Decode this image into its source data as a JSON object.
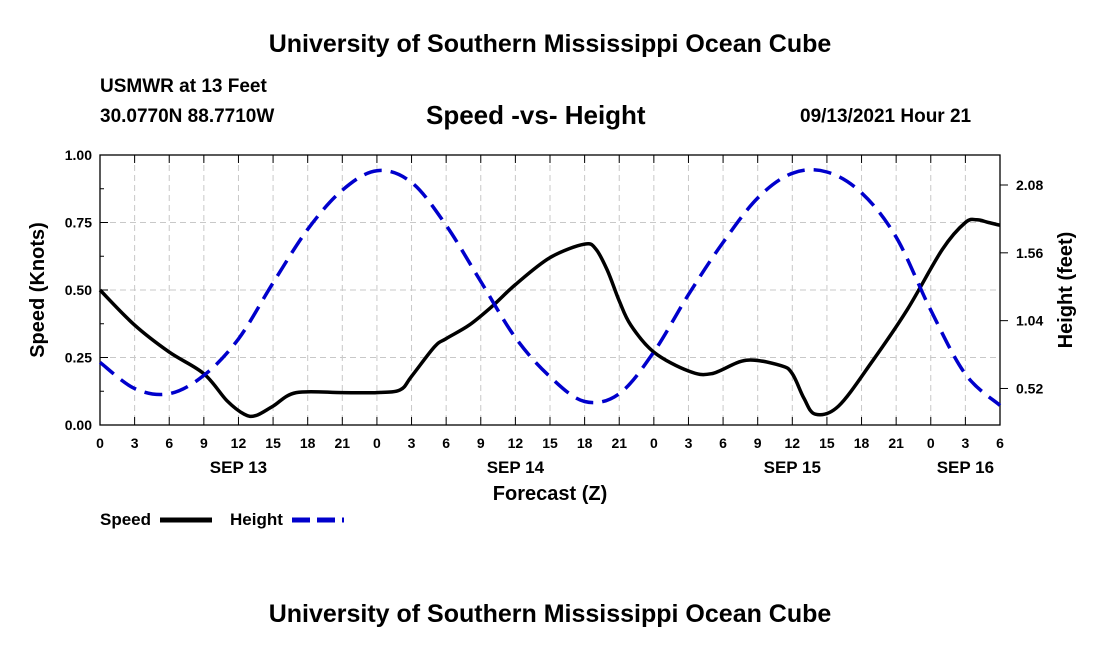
{
  "header": {
    "title": "University of Southern Mississippi Ocean Cube",
    "station": "USMWR at 13 Feet",
    "coords": "30.0770N  88.7710W",
    "subtitle": "Speed -vs- Height",
    "timestamp": "09/13/2021 Hour 21"
  },
  "footer": {
    "title": "University of Southern Mississippi Ocean Cube"
  },
  "chart_data": {
    "type": "line",
    "title": "Speed -vs- Height",
    "xlabel": "Forecast (Z)",
    "ylabel": "Speed (Knots)",
    "y2label": "Height (feet)",
    "x_unit": "hours since Sep 13 00Z",
    "xlim": [
      0,
      78
    ],
    "ylim": [
      0,
      1
    ],
    "y2lim": [
      0.24,
      2.31
    ],
    "x_ticks": [
      0,
      3,
      6,
      9,
      12,
      15,
      18,
      21,
      24,
      27,
      30,
      33,
      36,
      39,
      42,
      45,
      48,
      51,
      54,
      57,
      60,
      63,
      66,
      69,
      72,
      75,
      78
    ],
    "x_tick_labels": [
      "0",
      "3",
      "6",
      "9",
      "12",
      "15",
      "18",
      "21",
      "0",
      "3",
      "6",
      "9",
      "12",
      "15",
      "18",
      "21",
      "0",
      "3",
      "6",
      "9",
      "12",
      "15",
      "18",
      "21",
      "0",
      "3",
      "6"
    ],
    "y_ticks": [
      0,
      0.25,
      0.5,
      0.75,
      1.0
    ],
    "y_tick_labels": [
      "0.00",
      "0.25",
      "0.50",
      "0.75",
      "1.00"
    ],
    "y2_ticks": [
      0.52,
      1.04,
      1.56,
      2.08
    ],
    "y2_tick_labels": [
      "0.52",
      "1.04",
      "1.56",
      "2.08"
    ],
    "date_labels": [
      {
        "x": 12,
        "label": "SEP 13"
      },
      {
        "x": 36,
        "label": "SEP 14"
      },
      {
        "x": 60,
        "label": "SEP 15"
      },
      {
        "x": 75,
        "label": "SEP 16"
      }
    ],
    "grid": true,
    "legend_position": "bottom-left",
    "series": [
      {
        "name": "Speed",
        "axis": "left",
        "color": "#000000",
        "dash": "solid",
        "x": [
          0,
          3,
          6,
          9,
          11,
          12.5,
          13.5,
          15,
          17,
          21,
          24,
          26,
          27,
          29,
          30,
          32,
          34,
          36,
          39,
          42,
          43,
          44,
          45,
          46,
          48,
          51,
          53,
          56,
          59,
          60,
          61,
          62,
          64,
          67,
          70,
          73,
          75,
          76,
          77,
          78
        ],
        "values": [
          0.5,
          0.37,
          0.27,
          0.19,
          0.09,
          0.04,
          0.035,
          0.07,
          0.12,
          0.12,
          0.12,
          0.13,
          0.18,
          0.29,
          0.32,
          0.37,
          0.44,
          0.52,
          0.62,
          0.67,
          0.65,
          0.57,
          0.46,
          0.37,
          0.27,
          0.2,
          0.19,
          0.24,
          0.22,
          0.19,
          0.1,
          0.04,
          0.07,
          0.24,
          0.43,
          0.65,
          0.75,
          0.76,
          0.75,
          0.74
        ]
      },
      {
        "name": "Height",
        "axis": "right",
        "color": "#0000CC",
        "dash": "dashed",
        "x": [
          0,
          3,
          6,
          9,
          12,
          15,
          18,
          21,
          24,
          27,
          30,
          33,
          36,
          39,
          42,
          45,
          48,
          51,
          54,
          57,
          60,
          63,
          66,
          69,
          72,
          75,
          78
        ],
        "values": [
          0.72,
          0.52,
          0.48,
          0.62,
          0.9,
          1.33,
          1.74,
          2.04,
          2.19,
          2.1,
          1.77,
          1.34,
          0.91,
          0.61,
          0.42,
          0.48,
          0.8,
          1.24,
          1.64,
          1.98,
          2.17,
          2.18,
          2.02,
          1.68,
          1.12,
          0.63,
          0.39
        ]
      }
    ]
  }
}
